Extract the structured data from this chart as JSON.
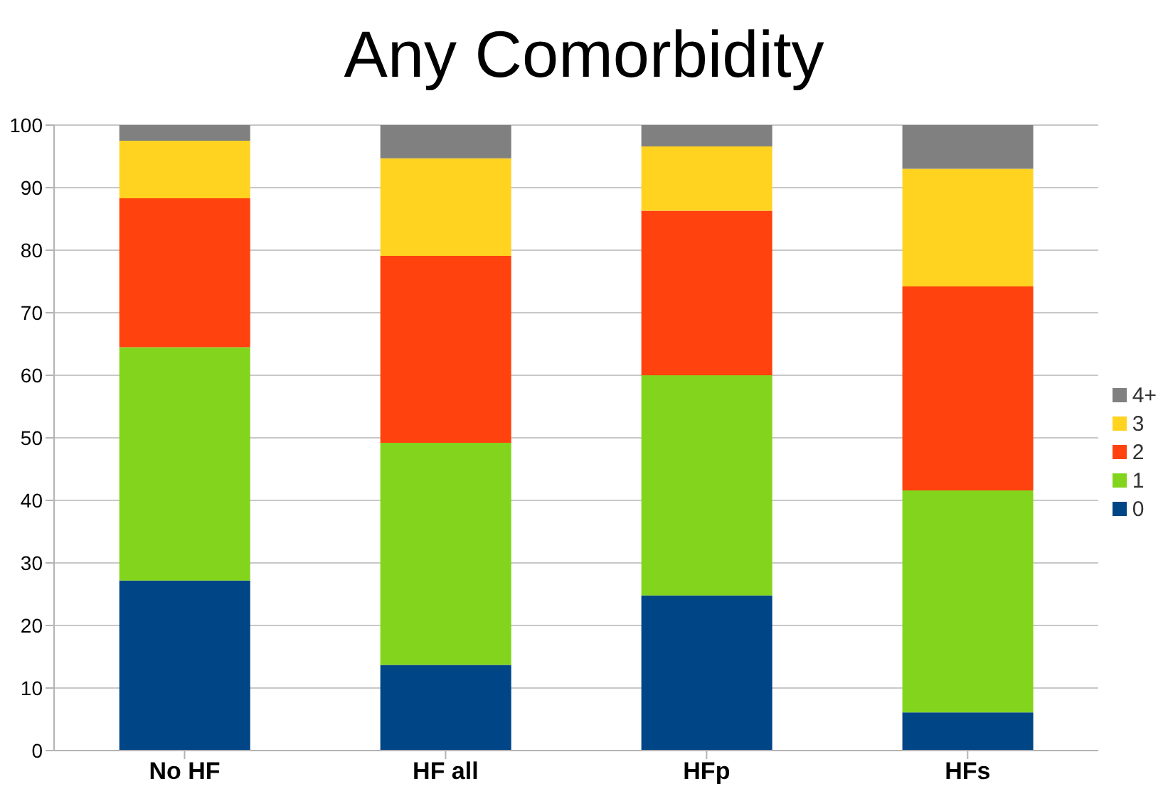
{
  "chart_data": {
    "type": "bar",
    "title": "Any Comorbidity",
    "stacked": true,
    "categories": [
      "No HF",
      "HF all",
      "HFp",
      "HFs"
    ],
    "series": [
      {
        "name": "0",
        "color": "#004586",
        "values": [
          27.2,
          13.7,
          24.8,
          6.1
        ]
      },
      {
        "name": "1",
        "color": "#83d41c",
        "values": [
          37.3,
          35.5,
          35.2,
          35.5
        ]
      },
      {
        "name": "2",
        "color": "#ff420e",
        "values": [
          23.8,
          29.9,
          26.3,
          32.6
        ]
      },
      {
        "name": "3",
        "color": "#ffd320",
        "values": [
          9.2,
          15.6,
          10.3,
          18.8
        ]
      },
      {
        "name": "4+",
        "color": "#808080",
        "values": [
          2.5,
          5.3,
          3.4,
          7.0
        ]
      }
    ],
    "ylim": [
      0,
      100
    ],
    "yticks": [
      0,
      10,
      20,
      30,
      40,
      50,
      60,
      70,
      80,
      90,
      100
    ],
    "grid": "y",
    "legend": "right"
  }
}
